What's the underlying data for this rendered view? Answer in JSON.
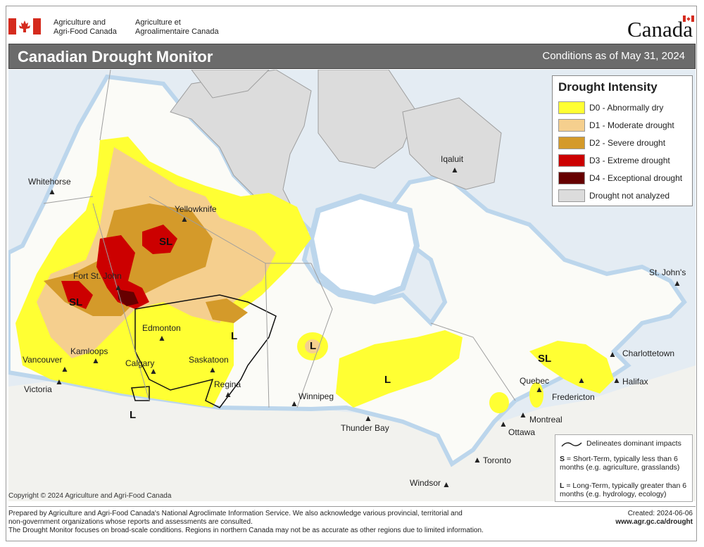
{
  "gov": {
    "en_line1": "Agriculture and",
    "en_line2": "Agri-Food Canada",
    "fr_line1": "Agriculture et",
    "fr_line2": "Agroalimentaire Canada",
    "wordmark": "Canada"
  },
  "title": "Canadian Drought Monitor",
  "conditions": "Conditions as of May 31, 2024",
  "legend": {
    "title": "Drought Intensity",
    "items": [
      {
        "label": "D0 - Abnormally dry",
        "color": "#ffff33"
      },
      {
        "label": "D1 - Moderate drought",
        "color": "#f5cf8e"
      },
      {
        "label": "D2 - Severe drought",
        "color": "#d49a2a"
      },
      {
        "label": "D3 - Extreme drought",
        "color": "#cc0000"
      },
      {
        "label": "D4 - Exceptional drought",
        "color": "#660000"
      },
      {
        "label": "Drought not analyzed",
        "color": "#dcdcdc"
      }
    ]
  },
  "cities": {
    "whitehorse": "Whitehorse",
    "yellowknife": "Yellowknife",
    "iqaluit": "Iqaluit",
    "fort_st_john": "Fort St. John",
    "edmonton": "Edmonton",
    "kamloops": "Kamloops",
    "vancouver": "Vancouver",
    "victoria": "Victoria",
    "calgary": "Calgary",
    "saskatoon": "Saskatoon",
    "regina": "Regina",
    "winnipeg": "Winnipeg",
    "thunder_bay": "Thunder Bay",
    "quebec": "Quebec",
    "montreal": "Montreal",
    "ottawa": "Ottawa",
    "toronto": "Toronto",
    "windsor": "Windsor",
    "fredericton": "Fredericton",
    "halifax": "Halifax",
    "charlottetown": "Charlottetown",
    "st_johns": "St. John's"
  },
  "impact_labels": {
    "sl_north": "SL",
    "sl_bc": "SL",
    "sl_east": "SL",
    "l_sask": "L",
    "l_bc_south": "L",
    "l_ontario_nw": "L",
    "l_ontario": "L"
  },
  "notes": {
    "delineates": "Delineates dominant impacts",
    "s_key": "S",
    "s_text": " = Short-Term, typically less than 6 months (e.g. agriculture, grasslands)",
    "l_key": "L",
    "l_text": " = Long-Term, typically greater  than 6 months (e.g. hydrology, ecology)"
  },
  "copyright": "Copyright © 2024 Agriculture and Agri-Food Canada",
  "footer": {
    "line1": "Prepared by Agriculture and Agri-Food Canada's National Agroclimate Information Service.  We also acknowledge various provincial, territorial and",
    "line2": "non-government organizations whose reports and assessments are consulted.",
    "line3": "The Drought Monitor focuses on broad-scale conditions.  Regions in northern Canada may not be as accurate as other regions due to limited information.",
    "created": "Created: 2024-06-06",
    "url": "www.agr.gc.ca/drought"
  }
}
